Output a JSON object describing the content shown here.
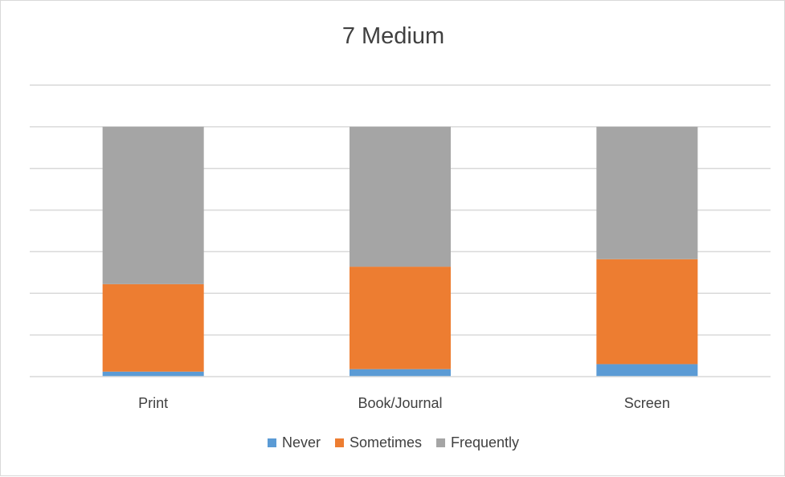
{
  "chart_data": {
    "type": "bar",
    "stacked": true,
    "title": "7 Medium",
    "categories": [
      "Print",
      "Book/Journal",
      "Screen"
    ],
    "series": [
      {
        "name": "Never",
        "color": "#5b9bd5",
        "values": [
          2,
          3,
          5
        ]
      },
      {
        "name": "Sometimes",
        "color": "#ed7d31",
        "values": [
          35,
          41,
          42
        ]
      },
      {
        "name": "Frequently",
        "color": "#a5a5a5",
        "values": [
          63,
          56,
          53
        ]
      }
    ],
    "ylim": [
      0,
      100
    ],
    "grid": true,
    "legend_position": "bottom"
  }
}
